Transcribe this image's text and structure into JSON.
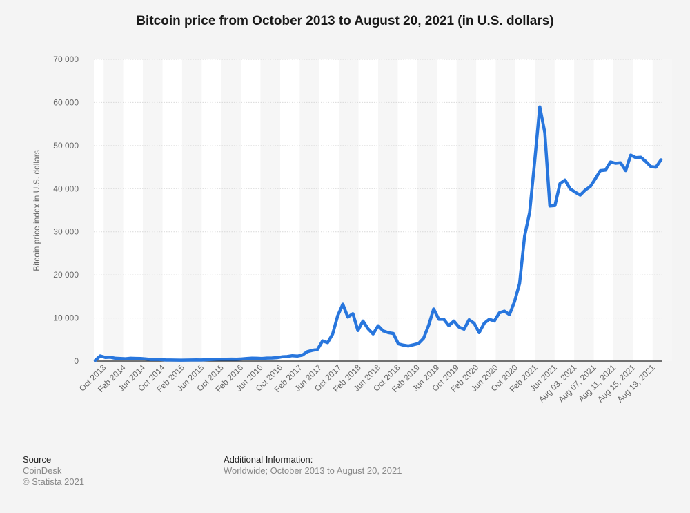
{
  "chart_data": {
    "type": "line",
    "title": "Bitcoin price from October 2013 to August 20, 2021 (in U.S. dollars)",
    "xlabel": "",
    "ylabel": "Bitcoin price index in U.S. dollars",
    "ylim": [
      0,
      70000
    ],
    "yticks": [
      0,
      10000,
      20000,
      30000,
      40000,
      50000,
      60000,
      70000
    ],
    "ytick_labels": [
      "0",
      "10 000",
      "20 000",
      "30 000",
      "40 000",
      "50 000",
      "60 000",
      "70 000"
    ],
    "grid": true,
    "line_color": "#2876dd",
    "x_tick_labels": [
      "Oct 2013",
      "Feb 2014",
      "Jun 2014",
      "Oct 2014",
      "Feb 2015",
      "Jun 2015",
      "Oct 2015",
      "Feb 2016",
      "Jun 2016",
      "Oct 2016",
      "Feb 2017",
      "Jun 2017",
      "Oct 2017",
      "Feb 2018",
      "Jun 2018",
      "Oct 2018",
      "Feb 2019",
      "Jun 2019",
      "Oct 2019",
      "Feb 2020",
      "Jun 2020",
      "Oct 2020",
      "Feb 2021",
      "Jun 2021",
      "Aug 03, 2021",
      "Aug 07, 2021",
      "Aug 11, 2021",
      "Aug 15, 2021",
      "Aug 19, 2021"
    ],
    "values": [
      150,
      1200,
      850,
      900,
      650,
      600,
      550,
      650,
      620,
      600,
      500,
      380,
      400,
      350,
      250,
      260,
      240,
      230,
      240,
      250,
      280,
      260,
      320,
      380,
      420,
      440,
      430,
      460,
      440,
      500,
      600,
      680,
      650,
      600,
      700,
      720,
      800,
      1000,
      1050,
      1250,
      1150,
      1400,
      2200,
      2500,
      2700,
      4700,
      4300,
      6300,
      10500,
      13200,
      10200,
      11000,
      7100,
      9300,
      7500,
      6300,
      8200,
      7000,
      6600,
      6400,
      4000,
      3700,
      3500,
      3800,
      4100,
      5300,
      8300,
      12100,
      9700,
      9700,
      8200,
      9300,
      7900,
      7400,
      9600,
      8800,
      6600,
      8800,
      9700,
      9300,
      11200,
      11600,
      10800,
      13800,
      18000,
      29000,
      34500,
      46500,
      59000,
      53000,
      36000,
      36100,
      41200,
      42000,
      40000,
      39200,
      38500,
      39700,
      40500,
      42300,
      44200,
      44300,
      46200,
      45900,
      46000,
      44200,
      47800,
      47200,
      47300,
      46300,
      45100,
      45000,
      46700
    ]
  },
  "footer": {
    "source_heading": "Source",
    "source_line1": "CoinDesk",
    "source_line2": "© Statista 2021",
    "additional_heading": "Additional Information:",
    "additional_text": "Worldwide; October 2013 to August 20, 2021"
  }
}
